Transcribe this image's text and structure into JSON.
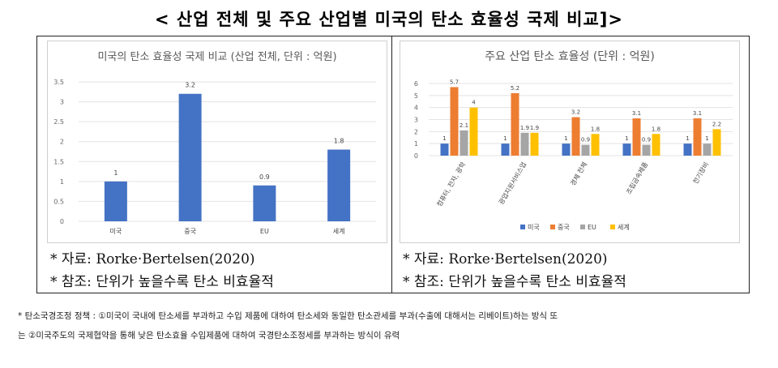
{
  "page_title": "< 산업 전체 및 주요 산업별 미국의 탄소 효율성 국제 비교]>",
  "left_panel": {
    "source": "* 자료: Rorke·Bertelsen(2020)",
    "reference": "* 참조: 단위가 높을수록 탄소 비효율적"
  },
  "right_panel": {
    "source": "* 자료: Rorke·Bertelsen(2020)",
    "reference": "* 참조: 단위가 높을수록 탄소 비효율적"
  },
  "footnote": {
    "line1": "* 탄소국경조정 정책 : ①미국이 국내에 탄소세를 부과하고 수입 제품에 대하여 탄소세와 동일한 탄소관세를 부과(수출에 대해서는 리베이트)하는 방식 또",
    "line2": "는 ②미국주도의 국제협약을 통해 낮은 탄소효율 수입제품에 대하여 국경탄소조정세를 부과하는 방식이 유력"
  },
  "chart_data": [
    {
      "type": "bar",
      "title": "미국의 탄소 효율성 국제 비교 (산업 전체, 단위 : 억원)",
      "categories": [
        "미국",
        "중국",
        "EU",
        "세계"
      ],
      "values": [
        1,
        3.2,
        0.9,
        1.8
      ],
      "value_labels": [
        "1",
        "3.2",
        "0.9",
        "1.8"
      ],
      "ylim": [
        0,
        3.5
      ],
      "yticks": [
        "0",
        "0.5",
        "1",
        "1.5",
        "2",
        "2.5",
        "3",
        "3.5"
      ],
      "grid": true,
      "bar_color": "#4472C4"
    },
    {
      "type": "bar",
      "title": "주요 산업 탄소 효율성 (단위 : 억원)",
      "categories": [
        "컴퓨터, 전자, 광학",
        "광업지원서비스업",
        "경제 전체",
        "조립금속제품",
        "전기장비"
      ],
      "series": [
        {
          "name": "미국",
          "color": "#4472C4",
          "values": [
            1,
            1,
            1,
            1,
            1
          ]
        },
        {
          "name": "중국",
          "color": "#ED7D31",
          "values": [
            5.7,
            5.2,
            3.2,
            3.1,
            3.1
          ]
        },
        {
          "name": "EU",
          "color": "#A5A5A5",
          "values": [
            2.1,
            1.9,
            0.9,
            0.9,
            1
          ]
        },
        {
          "name": "세계",
          "color": "#FFC000",
          "values": [
            4,
            1.9,
            1.8,
            1.8,
            2.2
          ]
        }
      ],
      "ylim": [
        0,
        6
      ],
      "yticks": [
        "0",
        "1",
        "2",
        "3",
        "4",
        "5",
        "6"
      ],
      "grid": true,
      "legend": "bottom"
    }
  ]
}
